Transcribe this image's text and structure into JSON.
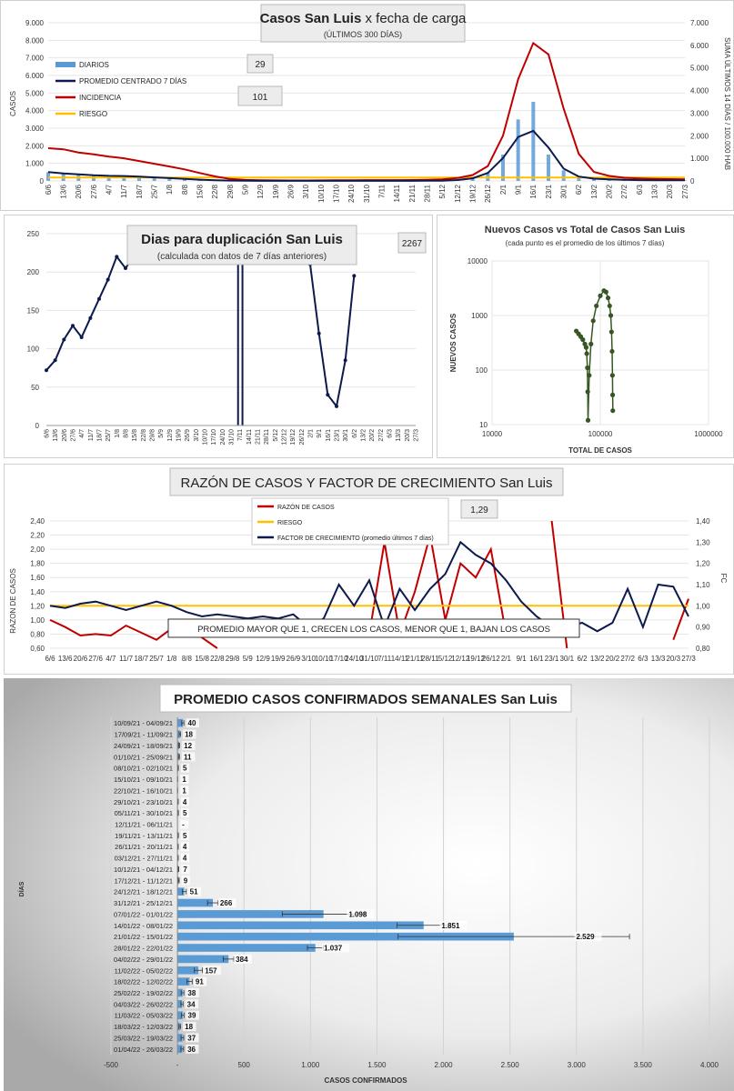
{
  "charts": {
    "c1": {
      "title_bold": "Casos San Luis",
      "title_rest": "x fecha de carga",
      "subtitle": "(ÚLTIMOS 300 DÍAS)",
      "ylabel": "CASOS",
      "ylabel_right": "SUMA ÚLTIMOS 14 DÍAS / 100.000 HAB",
      "left_ticks": [
        "0",
        "1.000",
        "2.000",
        "3.000",
        "4.000",
        "5.000",
        "6.000",
        "7.000",
        "8.000",
        "9.000"
      ],
      "right_ticks": [
        "0",
        "1.000",
        "2.000",
        "3.000",
        "4.000",
        "5.000",
        "6.000",
        "7.000"
      ],
      "legend": [
        "DIARIOS",
        "PROMEDIO CENTRADO 7 DÍAS",
        "INCIDENCIA",
        "RIESGO"
      ],
      "box_a": "29",
      "box_b": "101",
      "x_labels": [
        "6/6",
        "13/6",
        "20/6",
        "27/6",
        "4/7",
        "11/7",
        "18/7",
        "25/7",
        "1/8",
        "8/8",
        "15/8",
        "22/8",
        "29/8",
        "5/9",
        "12/9",
        "19/9",
        "26/9",
        "3/10",
        "10/10",
        "17/10",
        "24/10",
        "31/10",
        "7/11",
        "14/11",
        "21/11",
        "28/11",
        "5/12",
        "12/12",
        "19/12",
        "26/12",
        "2/1",
        "9/1",
        "16/1",
        "23/1",
        "30/1",
        "6/2",
        "13/2",
        "20/2",
        "27/2",
        "6/3",
        "13/3",
        "20/3",
        "27/3"
      ]
    },
    "c2": {
      "title": "Dias para duplicación San Luis",
      "subtitle": "(calculada con datos de 7 días anteriores)",
      "box": "2267",
      "y_ticks": [
        "0",
        "50",
        "100",
        "150",
        "200",
        "250"
      ],
      "x_labels": [
        "6/6",
        "13/6",
        "20/6",
        "27/6",
        "4/7",
        "11/7",
        "18/7",
        "25/7",
        "1/8",
        "8/8",
        "15/8",
        "22/8",
        "29/8",
        "5/9",
        "12/9",
        "19/9",
        "26/9",
        "3/10",
        "10/10",
        "17/10",
        "24/10",
        "31/10",
        "7/11",
        "14/11",
        "21/11",
        "28/11",
        "5/12",
        "12/12",
        "19/12",
        "26/12",
        "2/1",
        "9/1",
        "16/1",
        "23/1",
        "30/1",
        "6/2",
        "13/2",
        "20/2",
        "27/2",
        "6/3",
        "13/3",
        "20/3",
        "27/3"
      ]
    },
    "c3": {
      "title": "Nuevos Casos vs Total de Casos San Luis",
      "subtitle": "(cada punto es el promedio de los últimos 7 días)",
      "ylabel": "NUEVOS CASOS",
      "xlabel": "TOTAL DE CASOS",
      "y_ticks": [
        "10",
        "100",
        "1000",
        "10000"
      ],
      "x_ticks": [
        "10000",
        "100000",
        "1000000"
      ]
    },
    "c4": {
      "title": "RAZÓN DE CASOS Y FACTOR DE CRECIMIENTO San Luis",
      "ylabel": "RAZON DE CASOS",
      "ylabel_right": "FC",
      "left_ticks": [
        "0,60",
        "0,80",
        "1,00",
        "1,20",
        "1,40",
        "1,60",
        "1,80",
        "2,00",
        "2,20",
        "2,40"
      ],
      "right_ticks": [
        "0,80",
        "0,90",
        "1,00",
        "1,10",
        "1,20",
        "1,30",
        "1,40"
      ],
      "legend": [
        "RAZÓN DE CASOS",
        "RIESGO",
        "FACTOR DE CRECIMIENTO (promedio últimos 7 días)"
      ],
      "box": "1,29",
      "note": "PROMEDIO MAYOR QUE 1, CRECEN LOS CASOS, MENOR QUE 1, BAJAN LOS CASOS",
      "x_labels": [
        "6/6",
        "13/6",
        "20/6",
        "27/6",
        "4/7",
        "11/7",
        "18/7",
        "25/7",
        "1/8",
        "8/8",
        "15/8",
        "22/8",
        "29/8",
        "5/9",
        "12/9",
        "19/9",
        "26/9",
        "3/10",
        "10/10",
        "17/10",
        "24/10",
        "31/10",
        "7/11",
        "14/11",
        "21/11",
        "28/11",
        "5/12",
        "12/12",
        "19/12",
        "26/12",
        "2/1",
        "9/1",
        "16/1",
        "23/1",
        "30/1",
        "6/2",
        "13/2",
        "20/2",
        "27/2",
        "6/3",
        "13/3",
        "20/3",
        "27/3"
      ]
    },
    "c5": {
      "title": "PROMEDIO CASOS CONFIRMADOS SEMANALES San Luis",
      "ylabel": "DÍAS",
      "xlabel": "CASOS CONFIRMADOS",
      "x_ticks": [
        "-500",
        "-",
        "500",
        "1.000",
        "1.500",
        "2.000",
        "2.500",
        "3.000",
        "3.500",
        "4.000"
      ]
    }
  },
  "chart_data": [
    {
      "type": "bar",
      "title": "Casos San Luis x fecha de carga",
      "subtitle": "(ÚLTIMOS 300 DÍAS)",
      "ylabel": "CASOS",
      "ylabel_right": "SUMA ÚLTIMOS 14 DÍAS / 100.000 HAB",
      "ylim": [
        0,
        9000
      ],
      "ylim_right": [
        0,
        7000
      ],
      "x": [
        "6/6",
        "13/6",
        "20/6",
        "27/6",
        "4/7",
        "11/7",
        "18/7",
        "25/7",
        "1/8",
        "8/8",
        "15/8",
        "22/8",
        "29/8",
        "5/9",
        "12/9",
        "19/9",
        "26/9",
        "3/10",
        "10/10",
        "17/10",
        "24/10",
        "31/10",
        "7/11",
        "14/11",
        "21/11",
        "28/11",
        "5/12",
        "12/12",
        "19/12",
        "26/12",
        "2/1",
        "9/1",
        "16/1",
        "23/1",
        "30/1",
        "6/2",
        "13/2",
        "20/2",
        "27/2",
        "6/3",
        "13/3",
        "20/3",
        "27/3"
      ],
      "series": [
        {
          "name": "DIARIOS",
          "values": [
            500,
            420,
            360,
            300,
            280,
            250,
            220,
            180,
            150,
            120,
            60,
            30,
            15,
            8,
            5,
            4,
            3,
            3,
            4,
            4,
            5,
            4,
            4,
            5,
            6,
            8,
            20,
            60,
            150,
            500,
            1500,
            3500,
            4500,
            1500,
            600,
            250,
            120,
            90,
            60,
            40,
            35,
            30,
            36
          ]
        },
        {
          "name": "PROMEDIO CENTRADO 7 DÍAS",
          "values": [
            500,
            430,
            380,
            320,
            290,
            280,
            250,
            200,
            160,
            120,
            70,
            40,
            20,
            10,
            6,
            5,
            4,
            4,
            4,
            4,
            5,
            5,
            4,
            5,
            6,
            8,
            15,
            50,
            150,
            450,
            1300,
            2500,
            2850,
            1900,
            700,
            250,
            130,
            90,
            60,
            45,
            40,
            36,
            36
          ]
        },
        {
          "name": "INCIDENCIA",
          "axis": "right",
          "values": [
            1450,
            1400,
            1260,
            1180,
            1080,
            1000,
            880,
            760,
            640,
            510,
            350,
            200,
            90,
            45,
            30,
            25,
            22,
            22,
            25,
            28,
            32,
            35,
            35,
            38,
            42,
            48,
            70,
            130,
            260,
            650,
            2000,
            4500,
            6100,
            5600,
            3200,
            1200,
            400,
            220,
            140,
            110,
            90,
            80,
            70
          ]
        },
        {
          "name": "RIESGO",
          "axis": "right",
          "values": [
            150,
            150,
            150,
            150,
            150,
            150,
            150,
            150,
            150,
            150,
            150,
            150,
            150,
            150,
            150,
            150,
            150,
            150,
            150,
            150,
            150,
            150,
            150,
            150,
            150,
            150,
            150,
            150,
            150,
            150,
            150,
            150,
            150,
            150,
            150,
            150,
            150,
            150,
            150,
            150,
            150,
            150,
            150
          ]
        }
      ],
      "annotations": [
        "29",
        "101"
      ]
    },
    {
      "type": "line",
      "title": "Dias para duplicación San Luis",
      "subtitle": "(calculada con datos de 7 días anteriores)",
      "ylim": [
        0,
        250
      ],
      "x": [
        "6/6",
        "13/6",
        "20/6",
        "27/6",
        "4/7",
        "11/7",
        "18/7",
        "25/7",
        "1/8",
        "8/8",
        "15/8",
        "22/8",
        "29/8",
        "5/9",
        "12/9",
        "19/9",
        "26/9",
        "3/10",
        "10/10",
        "17/10",
        "24/10",
        "31/10",
        "7/11",
        "14/11",
        "21/11",
        "28/11",
        "5/12",
        "12/12",
        "19/12",
        "26/12",
        "2/1",
        "9/1",
        "16/1",
        "23/1",
        "30/1",
        "6/2",
        "13/2",
        "20/2",
        "27/2",
        "6/3",
        "13/3",
        "20/3",
        "27/3"
      ],
      "series": [
        {
          "name": "",
          "values": [
            72,
            85,
            112,
            130,
            115,
            140,
            165,
            190,
            220,
            205,
            222,
            null,
            null,
            null,
            null,
            null,
            null,
            null,
            null,
            null,
            null,
            null,
            null,
            null,
            null,
            null,
            null,
            null,
            null,
            null,
            210,
            120,
            40,
            25,
            85,
            195,
            null,
            null,
            null,
            null,
            null,
            null,
            null
          ]
        }
      ],
      "annotations": [
        "2267"
      ]
    },
    {
      "type": "scatter",
      "title": "Nuevos Casos vs Total de Casos San Luis",
      "subtitle": "(cada punto es el promedio de los últimos 7 días)",
      "xlabel": "TOTAL DE CASOS",
      "ylabel": "NUEVOS CASOS",
      "x_scale": "log",
      "y_scale": "log",
      "xlim": [
        10000,
        1000000
      ],
      "ylim": [
        10,
        10000
      ],
      "points": [
        [
          60000,
          520
        ],
        [
          63000,
          460
        ],
        [
          66000,
          410
        ],
        [
          69000,
          360
        ],
        [
          72000,
          300
        ],
        [
          74000,
          260
        ],
        [
          75000,
          200
        ],
        [
          76000,
          110
        ],
        [
          76500,
          40
        ],
        [
          77000,
          12
        ],
        [
          79000,
          80
        ],
        [
          82000,
          300
        ],
        [
          86000,
          800
        ],
        [
          92000,
          1500
        ],
        [
          100000,
          2300
        ],
        [
          108000,
          2850
        ],
        [
          113000,
          2700
        ],
        [
          118000,
          2100
        ],
        [
          122000,
          1500
        ],
        [
          125000,
          1000
        ],
        [
          127000,
          500
        ],
        [
          128500,
          220
        ],
        [
          129500,
          80
        ],
        [
          130000,
          35
        ],
        [
          130500,
          18
        ]
      ]
    },
    {
      "type": "line",
      "title": "RAZÓN DE CASOS Y FACTOR DE CRECIMIENTO San Luis",
      "ylabel": "RAZON DE CASOS",
      "ylabel_right": "FC",
      "ylim": [
        0.6,
        2.4
      ],
      "ylim_right": [
        0.8,
        1.4
      ],
      "x": [
        "6/6",
        "13/6",
        "20/6",
        "27/6",
        "4/7",
        "11/7",
        "18/7",
        "25/7",
        "1/8",
        "8/8",
        "15/8",
        "22/8",
        "29/8",
        "5/9",
        "12/9",
        "19/9",
        "26/9",
        "3/10",
        "10/10",
        "17/10",
        "24/10",
        "31/10",
        "7/11",
        "14/11",
        "21/11",
        "28/11",
        "5/12",
        "12/12",
        "19/12",
        "26/12",
        "2/1",
        "9/1",
        "16/1",
        "23/1",
        "30/1",
        "6/2",
        "13/2",
        "20/2",
        "27/2",
        "6/3",
        "13/3",
        "20/3",
        "27/3"
      ],
      "series": [
        {
          "name": "RAZÓN DE CASOS",
          "values": [
            1.0,
            0.9,
            0.78,
            0.8,
            0.78,
            0.92,
            0.82,
            0.72,
            0.88,
            0.92,
            0.75,
            0.5,
            null,
            null,
            null,
            null,
            null,
            null,
            null,
            null,
            null,
            0.8,
            2.1,
            0.8,
            1.4,
            2.2,
            1.0,
            1.8,
            1.6,
            2.0,
            0.8,
            null,
            null,
            2.4,
            0.5,
            null,
            null,
            null,
            null,
            null,
            null,
            0.72,
            1.3
          ]
        },
        {
          "name": "RIESGO",
          "values": [
            1.2,
            1.2,
            1.2,
            1.2,
            1.2,
            1.2,
            1.2,
            1.2,
            1.2,
            1.2,
            1.2,
            1.2,
            1.2,
            1.2,
            1.2,
            1.2,
            1.2,
            1.2,
            1.2,
            1.2,
            1.2,
            1.2,
            1.2,
            1.2,
            1.2,
            1.2,
            1.2,
            1.2,
            1.2,
            1.2,
            1.2,
            1.2,
            1.2,
            1.2,
            1.2,
            1.2,
            1.2,
            1.2,
            1.2,
            1.2,
            1.2,
            1.2,
            1.2
          ]
        },
        {
          "name": "FACTOR DE CRECIMIENTO (promedio últimos 7 días)",
          "axis": "right",
          "values": [
            1.0,
            0.99,
            1.01,
            1.02,
            1.0,
            0.98,
            1.0,
            1.02,
            1.0,
            0.97,
            0.95,
            0.96,
            0.95,
            0.94,
            0.95,
            0.94,
            0.96,
            0.9,
            0.94,
            1.1,
            1.0,
            1.12,
            0.9,
            1.08,
            0.98,
            1.08,
            1.15,
            1.3,
            1.24,
            1.2,
            1.12,
            1.02,
            0.95,
            0.9,
            0.9,
            0.92,
            0.88,
            0.92,
            1.08,
            0.9,
            1.1,
            1.09,
            0.95
          ]
        }
      ],
      "annotations": [
        "1,29",
        "PROMEDIO MAYOR QUE 1, CRECEN LOS CASOS, MENOR QUE 1, BAJAN LOS CASOS"
      ]
    },
    {
      "type": "bar",
      "orientation": "horizontal",
      "title": "PROMEDIO CASOS CONFIRMADOS SEMANALES San Luis",
      "xlabel": "CASOS CONFIRMADOS",
      "ylabel": "DÍAS",
      "xlim": [
        -500,
        4000
      ],
      "categories": [
        "10/09/21 - 04/09/21",
        "17/09/21 - 11/09/21",
        "24/09/21 - 18/09/21",
        "01/10/21 - 25/09/21",
        "08/10/21 - 02/10/21",
        "15/10/21 - 09/10/21",
        "22/10/21 - 16/10/21",
        "29/10/21 - 23/10/21",
        "05/11/21 - 30/10/21",
        "12/11/21 - 06/11/21",
        "19/11/21 - 13/11/21",
        "26/11/21 - 20/11/21",
        "03/12/21 - 27/11/21",
        "10/12/21 - 04/12/21",
        "17/12/21 - 11/12/21",
        "24/12/21 - 18/12/21",
        "31/12/21 - 25/12/21",
        "07/01/22 - 01/01/22",
        "14/01/22 - 08/01/22",
        "21/01/22 - 15/01/22",
        "28/01/22 - 22/01/22",
        "04/02/22 - 29/01/22",
        "11/02/22 - 05/02/22",
        "18/02/22 - 12/02/22",
        "25/02/22 - 19/02/22",
        "04/03/22 - 26/02/22",
        "11/03/22 - 05/03/22",
        "18/03/22 - 12/03/22",
        "25/03/22 - 19/03/22",
        "01/04/22 - 26/03/22"
      ],
      "values": [
        40,
        18,
        12,
        11,
        5,
        1,
        1,
        4,
        5,
        0,
        5,
        4,
        4,
        7,
        9,
        51,
        266,
        1098,
        1851,
        2529,
        1037,
        384,
        157,
        91,
        38,
        34,
        39,
        18,
        37,
        36
      ],
      "value_labels": [
        "40",
        "18",
        "12",
        "11",
        "5",
        "1",
        "1",
        "4",
        "5",
        "-",
        "5",
        "4",
        "4",
        "7",
        "9",
        "51",
        "266",
        "1.098",
        "1.851",
        "2.529",
        "1.037",
        "384",
        "157",
        "91",
        "38",
        "34",
        "39",
        "18",
        "37",
        "36"
      ],
      "error": [
        8,
        5,
        4,
        4,
        2,
        1,
        1,
        2,
        2,
        0,
        2,
        2,
        2,
        3,
        4,
        15,
        40,
        310,
        200,
        870,
        60,
        40,
        30,
        20,
        10,
        8,
        10,
        6,
        10,
        10
      ]
    }
  ]
}
